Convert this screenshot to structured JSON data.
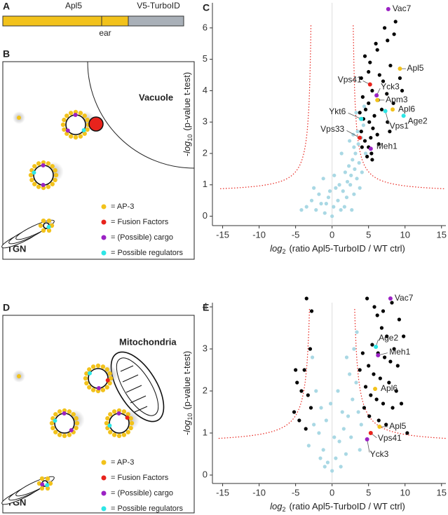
{
  "panel_labels": [
    "A",
    "B",
    "C",
    "D",
    "E"
  ],
  "panel_a": {
    "segments": [
      "Apl5",
      "V5-TurboID"
    ],
    "ear": "ear"
  },
  "panel_b": {
    "compartment": "Vacuole",
    "tgn": "TGN",
    "legend": [
      {
        "color": "#f2c21b",
        "text": "= AP-3"
      },
      {
        "color": "#e8231c",
        "text": "= Fusion Factors"
      },
      {
        "color": "#9b22c4",
        "text": "= (Possible) cargo"
      },
      {
        "color": "#2ee6e6",
        "text": "= Possible regulators"
      }
    ]
  },
  "panel_d": {
    "compartment": "Mitochondria",
    "tgn": "TGN",
    "legend": [
      {
        "color": "#f2c21b",
        "text": "= AP-3"
      },
      {
        "color": "#e8231c",
        "text": "= Fusion Factors"
      },
      {
        "color": "#9b22c4",
        "text": "= (Possible) cargo"
      },
      {
        "color": "#2ee6e6",
        "text": "= Possible regulators"
      }
    ]
  },
  "chart_data": [
    {
      "type": "scatter",
      "xlabel": {
        "prefix": "log",
        "sub": "2",
        "rest": "(ratio Apl5-TurboID / WT ctrl)"
      },
      "ylabel": {
        "prefix": "-log",
        "sub": "10",
        "rest": "(p-value t-test)"
      },
      "xlim": [
        -16.4,
        15.6
      ],
      "ylim": [
        -0.3,
        6.8
      ],
      "xticks": [
        -15,
        -10,
        -5,
        0,
        5,
        10,
        15
      ],
      "yticks": [
        0,
        1,
        2,
        3,
        4,
        5,
        6
      ],
      "zero_line": true,
      "series": [
        {
          "color": "#a9d8e4",
          "x": [
            -3.5,
            -2.8,
            -2.2,
            -1.5,
            -1.0,
            -0.5,
            0.2,
            0.8,
            1.2,
            1.5,
            2.0,
            2.5,
            3.0,
            3.4,
            1.8,
            2.3,
            2.8,
            3.2,
            3.6,
            4.0,
            4.3,
            3.9,
            3.5,
            3.0,
            2.6,
            2.1,
            1.0,
            0.5,
            -0.3,
            -1.8,
            -2.5,
            -4.2,
            1.3,
            2.4,
            3.3,
            4.4,
            3.1,
            2.9,
            3.7,
            4.6,
            -1.2,
            0.0,
            0.3,
            1.7,
            2.7,
            3.8,
            -0.8,
            4.1
          ],
          "y": [
            0.3,
            0.5,
            0.2,
            0.4,
            0.1,
            0.6,
            0.3,
            0.5,
            0.2,
            0.8,
            0.6,
            1.0,
            0.7,
            1.2,
            1.4,
            1.6,
            1.8,
            2.0,
            2.3,
            2.5,
            2.9,
            3.1,
            2.7,
            2.2,
            1.3,
            1.1,
            1.0,
            0.9,
            0.8,
            0.7,
            0.9,
            0.2,
            2.0,
            2.4,
            3.3,
            3.5,
            1.5,
            2.6,
            1.7,
            2.0,
            1.2,
            0.0,
            1.3,
            0.3,
            0.2,
            0.9,
            0.4,
            1.4
          ]
        },
        {
          "color": "#000000",
          "x": [
            4.5,
            5.2,
            6.2,
            6.0,
            7.2,
            7.6,
            8.5,
            8.7,
            4.0,
            5.0,
            5.5,
            6.5,
            7.0,
            8.0,
            9.3,
            9.6,
            4.2,
            4.6,
            5.0,
            5.8,
            6.3,
            7.5,
            8.4,
            4.3,
            5.1,
            5.6,
            6.2,
            7.6,
            4.0,
            4.5,
            5.0,
            5.4,
            4.8,
            5.5,
            6.4,
            3.8,
            4.1,
            6.8,
            7.9,
            5.3
          ],
          "y": [
            5.1,
            4.9,
            5.3,
            5.5,
            6.0,
            5.6,
            5.8,
            6.2,
            4.4,
            4.6,
            4.0,
            4.5,
            4.3,
            4.8,
            4.4,
            4.0,
            3.8,
            3.4,
            3.6,
            3.2,
            3.7,
            3.9,
            3.6,
            3.1,
            3.0,
            2.8,
            2.6,
            3.0,
            2.7,
            2.4,
            2.2,
            2.0,
            1.9,
            1.8,
            2.3,
            3.3,
            2.2,
            3.4,
            2.7,
            2.5
          ]
        }
      ],
      "labels": [
        {
          "text": "Vac7",
          "x": 7.7,
          "y": 6.6,
          "color": "#9b22c4",
          "text_color": "#222"
        },
        {
          "text": "Apl5",
          "x": 9.3,
          "y": 4.7,
          "color": "#f2c21b",
          "text_color": "#222"
        },
        {
          "text": "Vps41",
          "x": 5.2,
          "y": 4.2,
          "color": "#e8231c",
          "text_color": "#222"
        },
        {
          "text": "Yck3",
          "x": 6.1,
          "y": 3.85,
          "color": "#9b22c4",
          "text_color": "#222"
        },
        {
          "text": "Apm3",
          "x": 6.2,
          "y": 3.7,
          "color": "#f2c21b",
          "text_color": "#222"
        },
        {
          "text": "Apl6",
          "x": 8.3,
          "y": 3.4,
          "color": "#f2c21b",
          "text_color": "#222"
        },
        {
          "text": "Age2",
          "x": 9.8,
          "y": 3.2,
          "color": "#2ee6e6",
          "text_color": "#222"
        },
        {
          "text": "Vps1",
          "x": 7.3,
          "y": 3.35,
          "color": "#2ee6e6",
          "text_color": "#222"
        },
        {
          "text": "Meh1",
          "x": 5.3,
          "y": 2.15,
          "color": "#9b22c4",
          "text_color": "#222"
        },
        {
          "text": "Ykt6",
          "x": 4.0,
          "y": 3.1,
          "color": "#2ee6e6",
          "text_color": "#aaaaaa"
        },
        {
          "text": "Vps33",
          "x": 3.8,
          "y": 2.5,
          "color": "#e8231c",
          "text_color": "#aaaaaa"
        }
      ]
    },
    {
      "type": "scatter",
      "xlabel": {
        "prefix": "log",
        "sub": "2",
        "rest": "(ratio Apl5-TurboID / WT ctrl)"
      },
      "ylabel": {
        "prefix": "-log",
        "sub": "10",
        "rest": "(p-value t-test)"
      },
      "xlim": [
        -16.4,
        15.6
      ],
      "ylim": [
        -0.2,
        4.1
      ],
      "xticks": [
        -15,
        -10,
        -5,
        0,
        5,
        10,
        15
      ],
      "yticks": [
        0,
        1,
        2,
        3,
        4
      ],
      "zero_line": true,
      "series": [
        {
          "color": "#a9d8e4",
          "x": [
            -2.5,
            -1.8,
            -1.2,
            -0.6,
            0.0,
            0.5,
            1.0,
            1.6,
            2.2,
            2.8,
            3.3,
            -2.2,
            -1.5,
            -0.8,
            0.3,
            1.9,
            2.6,
            3.6,
            4.0,
            -2.7,
            -1.0,
            1.2,
            2.4,
            3.0,
            -3.2,
            -0.2,
            0.8,
            1.4,
            3.8,
            -1.6,
            2.0,
            3.4
          ],
          "y": [
            1.2,
            1.0,
            0.6,
            0.3,
            0.1,
            0.4,
            0.8,
            1.1,
            1.4,
            1.8,
            2.2,
            2.0,
            1.6,
            1.3,
            0.9,
            0.5,
            0.9,
            1.5,
            1.2,
            2.8,
            0.2,
            0.2,
            2.4,
            3.0,
            0.7,
            1.7,
            2.0,
            1.5,
            0.6,
            0.4,
            2.8,
            3.4
          ]
        },
        {
          "color": "#000000",
          "x": [
            4.8,
            5.8,
            6.2,
            7.0,
            8.2,
            9.2,
            6.8,
            7.5,
            8.5,
            9.8,
            5.5,
            6.3,
            7.2,
            8.0,
            9.0,
            5.0,
            5.7,
            6.6,
            7.8,
            8.8,
            4.6,
            5.3,
            6.1,
            7.0,
            8.3,
            9.5,
            4.4,
            5.1,
            6.4,
            7.4,
            10.3,
            4.2,
            3.8,
            -3.5,
            -2.8,
            -3.0,
            -3.8,
            -5.0,
            -4.2,
            -3.3,
            -5.2,
            -4.5,
            -2.9,
            -3.6,
            -4.8
          ],
          "y": [
            4.2,
            4.0,
            3.8,
            3.9,
            4.1,
            3.7,
            3.5,
            3.3,
            3.0,
            3.3,
            3.1,
            2.9,
            2.8,
            2.7,
            2.6,
            2.6,
            2.4,
            2.3,
            2.2,
            2.0,
            2.1,
            1.9,
            1.8,
            1.7,
            1.6,
            1.7,
            1.6,
            1.4,
            1.3,
            1.2,
            1.0,
            2.9,
            2.5,
            4.2,
            3.9,
            3.0,
            2.5,
            2.5,
            2.0,
            1.9,
            1.5,
            1.3,
            1.6,
            1.1,
            2.2
          ]
        }
      ],
      "labels": [
        {
          "text": "Vac7",
          "x": 8.0,
          "y": 4.2,
          "color": "#9b22c4",
          "text_color": "#222"
        },
        {
          "text": "Age2",
          "x": 6.0,
          "y": 3.05,
          "color": "#2ee6e6",
          "text_color": "#222"
        },
        {
          "text": "Meh1",
          "x": 6.3,
          "y": 2.85,
          "color": "#9b22c4",
          "text_color": "#222"
        },
        {
          "text": "Apl6",
          "x": 5.9,
          "y": 2.05,
          "color": "#f2c21b",
          "text_color": "#222"
        },
        {
          "text": "Apl5",
          "x": 6.5,
          "y": 1.15,
          "color": "#f2c21b",
          "text_color": "#222"
        },
        {
          "text": "Vps41",
          "x": 5.3,
          "y": 1.0,
          "color": "#e8231c",
          "text_color": "#aaaaaa"
        },
        {
          "text": "Yck3",
          "x": 4.8,
          "y": 0.85,
          "color": "#9b22c4",
          "text_color": "#aaaaaa"
        }
      ]
    }
  ]
}
